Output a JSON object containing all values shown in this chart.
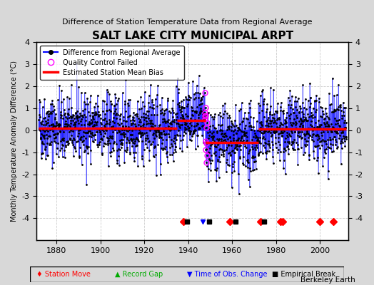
{
  "title": "SALT LAKE CITY MUNICIPAL ARPT",
  "subtitle": "Difference of Station Temperature Data from Regional Average",
  "ylabel": "Monthly Temperature Anomaly Difference (°C)",
  "xlabel_ticks": [
    1880,
    1900,
    1920,
    1940,
    1960,
    1980,
    2000
  ],
  "ylim": [
    -5,
    4
  ],
  "xlim": [
    1871,
    2013
  ],
  "yticks": [
    -4,
    -3,
    -2,
    -1,
    0,
    1,
    2,
    3,
    4
  ],
  "background_color": "#d8d8d8",
  "plot_bg_color": "#ffffff",
  "data_line_color": "#0000ff",
  "data_marker_color": "#000000",
  "bias_line_color": "#ff0000",
  "qc_fail_color": "#ff00ff",
  "station_move_color": "#ff0000",
  "record_gap_color": "#00aa00",
  "time_obs_color": "#0000ff",
  "empirical_break_color": "#000000",
  "watermark": "Berkeley Earth",
  "seed": 42,
  "x_start": 1872,
  "x_end": 2012,
  "bias_segments": [
    {
      "x_start": 1872,
      "x_end": 1935,
      "bias": 0.1
    },
    {
      "x_start": 1935,
      "x_end": 1939,
      "bias": 0.45
    },
    {
      "x_start": 1939,
      "x_end": 1948,
      "bias": 0.45
    },
    {
      "x_start": 1948,
      "x_end": 1959,
      "bias": -0.55
    },
    {
      "x_start": 1959,
      "x_end": 1972,
      "bias": -0.55
    },
    {
      "x_start": 1972,
      "x_end": 2012,
      "bias": 0.05
    }
  ],
  "station_moves": [
    1938,
    1959,
    1973,
    1982,
    1983,
    2000,
    2006
  ],
  "empirical_breaks": [
    1938,
    1948,
    1960,
    1973
  ],
  "time_obs_changes": [
    1948
  ],
  "qc_fails": [
    1948
  ],
  "legend_entries": [
    "Difference from Regional Average",
    "Quality Control Failed",
    "Estimated Station Mean Bias"
  ]
}
